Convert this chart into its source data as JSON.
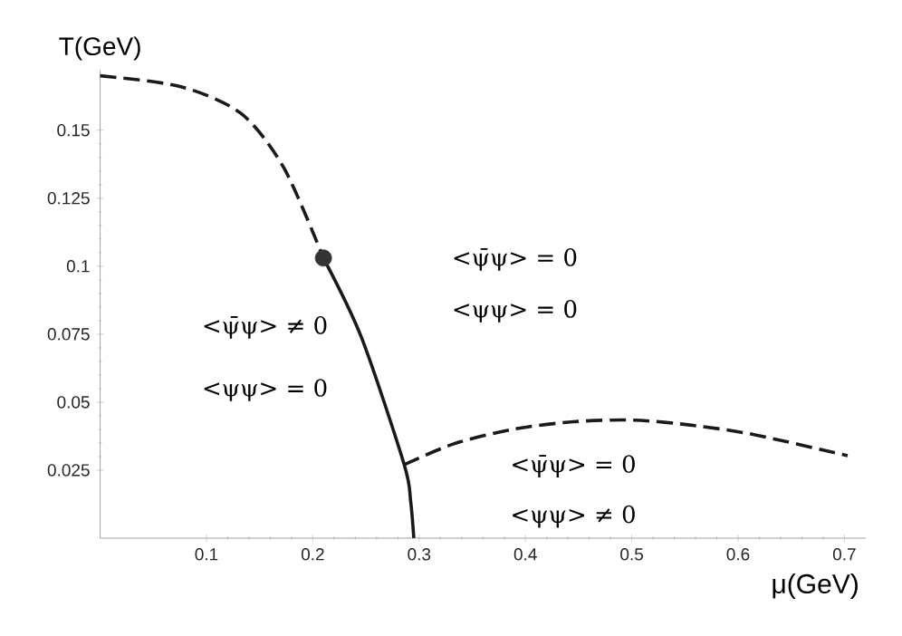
{
  "chart_data": {
    "type": "line",
    "xlabel": "μ(GeV)",
    "ylabel": "T(GeV)",
    "xlim": [
      0,
      0.72
    ],
    "ylim": [
      0,
      0.172
    ],
    "xticks": [
      0.1,
      0.2,
      0.3,
      0.4,
      0.5,
      0.6,
      0.7
    ],
    "yticks": [
      0.025,
      0.05,
      0.075,
      0.1,
      0.125,
      0.15
    ],
    "grid": false,
    "series": [
      {
        "line_style": "dashed",
        "color": "#1a1a1a",
        "x": [
          0,
          0.076,
          0.133,
          0.173,
          0.21
        ],
        "values": [
          0.17,
          0.166,
          0.156,
          0.136,
          0.103
        ]
      },
      {
        "line_style": "solid",
        "color": "#1a1a1a",
        "x": [
          0.21,
          0.246,
          0.286,
          0.292,
          0.295
        ],
        "values": [
          0.103,
          0.0736,
          0.027,
          0.0137,
          0
        ]
      },
      {
        "line_style": "dashed",
        "color": "#1a1a1a",
        "x": [
          0.286,
          0.332,
          0.388,
          0.445,
          0.502,
          0.559,
          0.616,
          0.703
        ],
        "values": [
          0.027,
          0.0346,
          0.04,
          0.0428,
          0.0434,
          0.0414,
          0.038,
          0.0303
        ]
      },
      {
        "type": "scatter",
        "marker": "circle",
        "color": "#333333",
        "x": [
          0.21
        ],
        "values": [
          0.103
        ]
      }
    ],
    "annotations": [
      "<ψ̄ψ> ≠ 0",
      "<ψψ> = 0",
      "<ψ̄ψ> = 0",
      "<ψψ> = 0",
      "<ψ̄ψ> = 0",
      "<ψψ> ≠ 0"
    ]
  }
}
